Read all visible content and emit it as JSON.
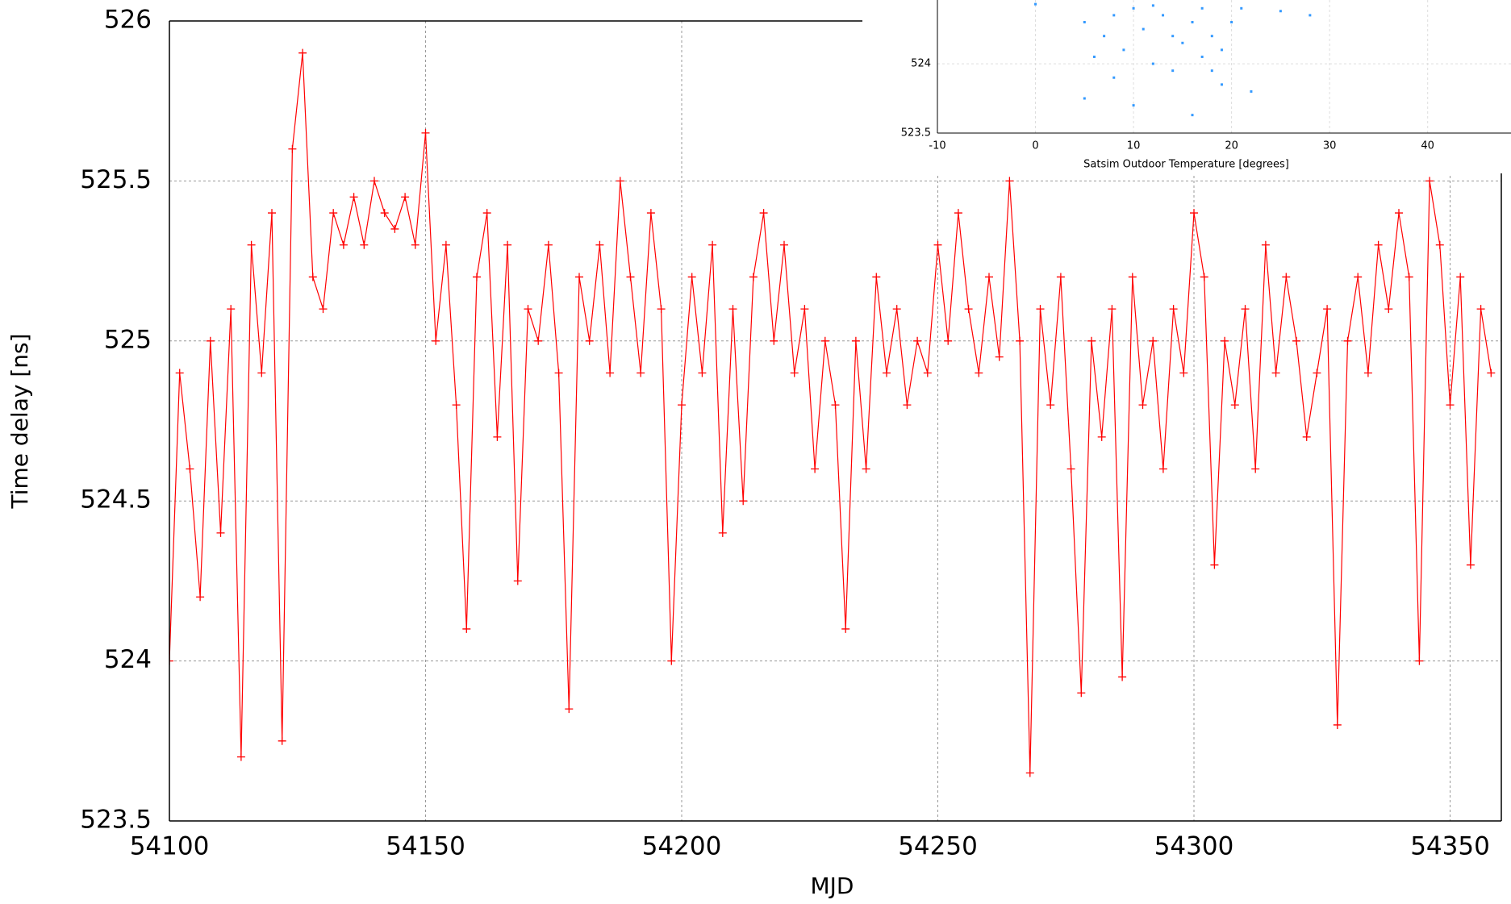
{
  "chart_data": [
    {
      "type": "line",
      "x_label": "MJD",
      "y_label": "Time delay [ns]",
      "xlim": [
        54100,
        54360
      ],
      "xticks": [
        54100,
        54150,
        54200,
        54250,
        54300,
        54350
      ],
      "ylim": [
        523.5,
        526
      ],
      "yticks": [
        523.5,
        524,
        524.5,
        525,
        525.5,
        526
      ],
      "grid": true,
      "color": "#ff0000",
      "x": [
        54100,
        54102,
        54104,
        54106,
        54108,
        54110,
        54112,
        54114,
        54116,
        54118,
        54120,
        54122,
        54124,
        54126,
        54128,
        54130,
        54132,
        54134,
        54136,
        54138,
        54140,
        54142,
        54144,
        54146,
        54148,
        54150,
        54152,
        54154,
        54156,
        54158,
        54160,
        54162,
        54164,
        54166,
        54168,
        54170,
        54172,
        54174,
        54176,
        54178,
        54180,
        54182,
        54184,
        54186,
        54188,
        54190,
        54192,
        54194,
        54196,
        54198,
        54200,
        54202,
        54204,
        54206,
        54208,
        54210,
        54212,
        54214,
        54216,
        54218,
        54220,
        54222,
        54224,
        54226,
        54228,
        54230,
        54232,
        54234,
        54236,
        54238,
        54240,
        54242,
        54244,
        54246,
        54248,
        54250,
        54252,
        54254,
        54256,
        54258,
        54260,
        54262,
        54264,
        54266,
        54268,
        54270,
        54272,
        54274,
        54276,
        54278,
        54280,
        54282,
        54284,
        54286,
        54288,
        54290,
        54292,
        54294,
        54296,
        54298,
        54300,
        54302,
        54304,
        54306,
        54308,
        54310,
        54312,
        54314,
        54316,
        54318,
        54320,
        54322,
        54324,
        54326,
        54328,
        54330,
        54332,
        54334,
        54336,
        54338,
        54340,
        54342,
        54344,
        54346,
        54348,
        54350,
        54352,
        54354,
        54356,
        54358
      ],
      "values": [
        524.0,
        524.9,
        524.6,
        524.2,
        525.0,
        524.4,
        525.1,
        523.7,
        525.3,
        524.9,
        525.4,
        523.75,
        525.6,
        525.9,
        525.2,
        525.1,
        525.4,
        525.3,
        525.45,
        525.3,
        525.5,
        525.4,
        525.35,
        525.45,
        525.3,
        525.65,
        525.0,
        525.3,
        524.8,
        524.1,
        525.2,
        525.4,
        524.7,
        525.3,
        524.25,
        525.1,
        525.0,
        525.3,
        524.9,
        523.85,
        525.2,
        525.0,
        525.3,
        524.9,
        525.5,
        525.2,
        524.9,
        525.4,
        525.1,
        524.0,
        524.8,
        525.2,
        524.9,
        525.3,
        524.4,
        525.1,
        524.5,
        525.2,
        525.4,
        525.0,
        525.3,
        524.9,
        525.1,
        524.6,
        525.0,
        524.8,
        524.1,
        525.0,
        524.6,
        525.2,
        524.9,
        525.1,
        524.8,
        525.0,
        524.9,
        525.3,
        525.0,
        525.4,
        525.1,
        524.9,
        525.2,
        524.95,
        525.5,
        525.0,
        523.65,
        525.1,
        524.8,
        525.2,
        524.6,
        523.9,
        525.0,
        524.7,
        525.1,
        523.95,
        525.2,
        524.8,
        525.0,
        524.6,
        525.1,
        524.9,
        525.4,
        525.2,
        524.3,
        525.0,
        524.8,
        525.1,
        524.6,
        525.3,
        524.9,
        525.2,
        525.0,
        524.7,
        524.9,
        525.1,
        523.8,
        525.0,
        525.2,
        524.9,
        525.3,
        525.1,
        525.4,
        525.2,
        524.0,
        525.5,
        525.3,
        524.8,
        525.2,
        524.3,
        525.1,
        524.9
      ]
    },
    {
      "type": "scatter",
      "x_label": "Satsim Outdoor Temperature [degrees]",
      "xlim": [
        -10,
        48.5
      ],
      "xticks": [
        -10,
        0,
        10,
        20,
        30,
        40
      ],
      "ylim": [
        523.5,
        524.46
      ],
      "yticks": [
        523.5,
        524
      ],
      "grid": true,
      "color": "#3399ff",
      "x": [
        0,
        5,
        5,
        6,
        7,
        8,
        9,
        10,
        10,
        11,
        12,
        13,
        14,
        15,
        16,
        16,
        17,
        18,
        18,
        19,
        19,
        20,
        22,
        21,
        25,
        28,
        12,
        8,
        14,
        17
      ],
      "values": [
        524.43,
        524.3,
        523.75,
        524.05,
        524.2,
        523.9,
        524.1,
        524.4,
        523.7,
        524.25,
        524.0,
        524.35,
        523.95,
        524.15,
        524.3,
        523.63,
        524.05,
        523.95,
        524.2,
        524.1,
        523.85,
        524.3,
        523.8,
        524.4,
        524.38,
        524.35,
        524.42,
        524.35,
        524.2,
        524.4
      ]
    }
  ]
}
